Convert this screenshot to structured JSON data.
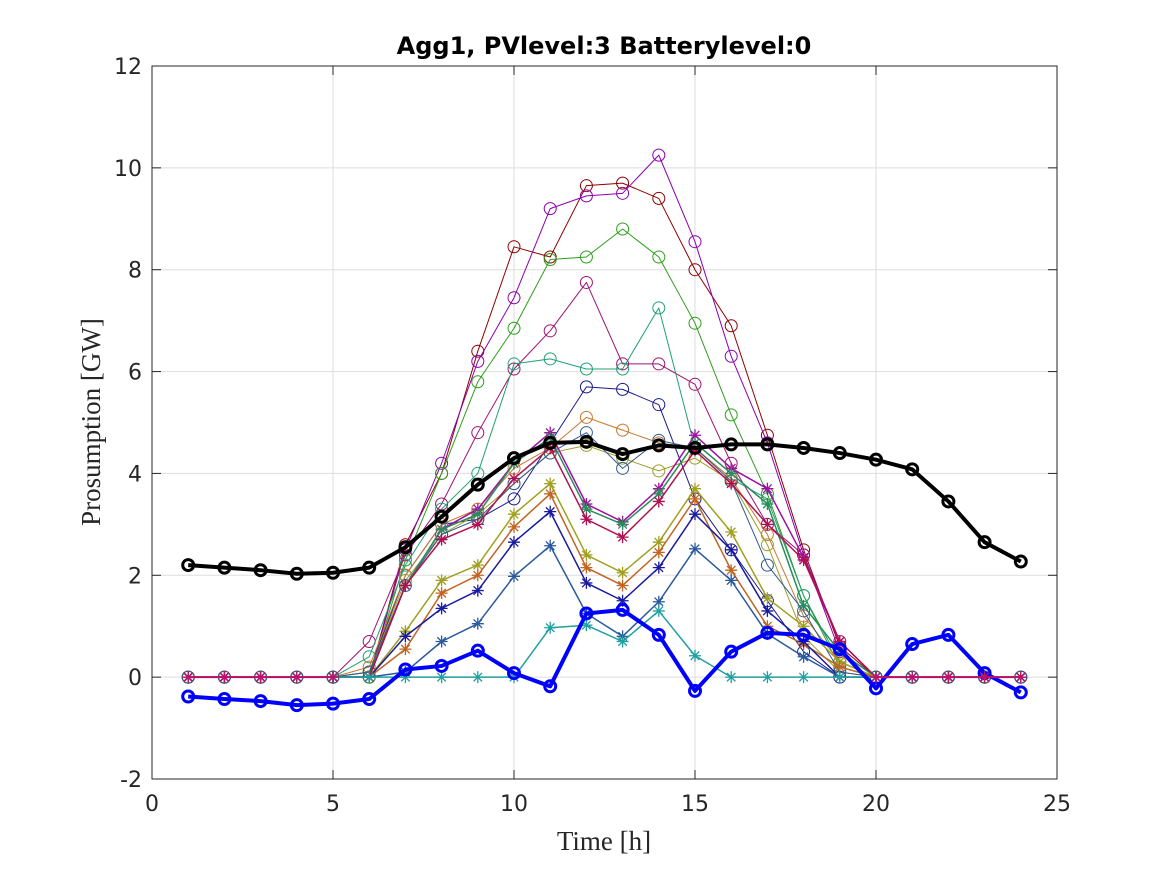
{
  "chart_data": {
    "type": "line",
    "title": "Agg1, PVlevel:3 Batterylevel:0",
    "xlabel": "Time [h]",
    "ylabel": "Prosumption [GW]",
    "xlim": [
      0,
      25
    ],
    "ylim": [
      -2,
      12
    ],
    "xticks": [
      0,
      5,
      10,
      15,
      20,
      25
    ],
    "yticks": [
      -2,
      0,
      2,
      4,
      6,
      8,
      10,
      12
    ],
    "grid": true,
    "x": [
      1,
      2,
      3,
      4,
      5,
      6,
      7,
      8,
      9,
      10,
      11,
      12,
      13,
      14,
      15,
      16,
      17,
      18,
      19,
      20,
      21,
      22,
      23,
      24
    ],
    "series": [
      {
        "color": "#8B0000",
        "marker": "o",
        "width": 1,
        "values": [
          0,
          0,
          0,
          0,
          0,
          0,
          2.6,
          4.0,
          6.4,
          8.45,
          8.25,
          9.65,
          9.7,
          9.4,
          8.0,
          6.9,
          4.75,
          2.5,
          0.6,
          0,
          0,
          0,
          0,
          0
        ]
      },
      {
        "color": "#8B00B0",
        "marker": "o",
        "width": 1,
        "values": [
          0,
          0,
          0,
          0,
          0,
          0,
          2.5,
          4.2,
          6.2,
          7.45,
          9.2,
          9.45,
          9.5,
          10.25,
          8.55,
          6.3,
          4.6,
          2.4,
          0.5,
          0,
          0,
          0,
          0,
          0
        ]
      },
      {
        "color": "#2E9E1E",
        "marker": "o",
        "width": 1,
        "values": [
          0,
          0,
          0,
          0,
          0,
          0,
          2.3,
          4.0,
          5.8,
          6.85,
          8.2,
          8.25,
          8.8,
          8.25,
          6.95,
          5.15,
          3.6,
          1.6,
          0.3,
          0,
          0,
          0,
          0,
          0
        ]
      },
      {
        "color": "#A01070",
        "marker": "o",
        "width": 1,
        "values": [
          0,
          0,
          0,
          0,
          0,
          0.7,
          2.4,
          3.4,
          4.8,
          6.05,
          6.8,
          7.75,
          6.15,
          6.15,
          5.75,
          4.2,
          3.0,
          2.4,
          0.7,
          0,
          0,
          0,
          0,
          0
        ]
      },
      {
        "color": "#20A070",
        "marker": "o",
        "width": 1,
        "values": [
          0,
          0,
          0,
          0,
          0,
          0.4,
          2.2,
          3.3,
          4.0,
          6.15,
          6.25,
          6.05,
          6.05,
          7.25,
          4.5,
          3.9,
          3.5,
          1.6,
          0.2,
          0,
          0,
          0,
          0,
          0
        ]
      },
      {
        "color": "#1A1A8C",
        "marker": "o",
        "width": 1,
        "values": [
          0,
          0,
          0,
          0,
          0,
          0.1,
          2.0,
          3.0,
          3.1,
          3.5,
          4.6,
          5.7,
          5.65,
          5.35,
          3.5,
          2.5,
          1.5,
          0.5,
          0,
          0,
          0,
          0,
          0,
          0
        ]
      },
      {
        "color": "#C87830",
        "marker": "o",
        "width": 1,
        "values": [
          0,
          0,
          0,
          0,
          0,
          0.2,
          2.0,
          3.0,
          3.3,
          4.1,
          4.5,
          5.1,
          4.85,
          4.6,
          4.5,
          3.9,
          2.8,
          1.2,
          0.3,
          0,
          0,
          0,
          0,
          0
        ]
      },
      {
        "color": "#9E9E28",
        "marker": "o",
        "width": 1,
        "values": [
          0,
          0,
          0,
          0,
          0,
          0.1,
          1.9,
          2.8,
          3.2,
          3.8,
          4.4,
          4.55,
          4.3,
          4.05,
          4.3,
          3.85,
          2.6,
          0.8,
          0.1,
          0,
          0,
          0,
          0,
          0
        ]
      },
      {
        "color": "#2E5A8C",
        "marker": "o",
        "width": 1,
        "values": [
          0,
          0,
          0,
          0,
          0,
          0.1,
          1.8,
          2.8,
          3.1,
          3.8,
          4.4,
          4.8,
          4.1,
          4.65,
          4.5,
          3.85,
          2.2,
          1.3,
          0.1,
          0,
          0,
          0,
          0,
          0
        ]
      },
      {
        "color": "#A010A0",
        "marker": "*",
        "width": 1.5,
        "values": [
          0,
          0,
          0,
          0,
          0,
          0,
          1.8,
          2.9,
          3.3,
          4.2,
          4.8,
          3.4,
          3.05,
          3.7,
          4.75,
          4.1,
          3.7,
          2.35,
          0.7,
          0,
          0,
          0,
          0,
          0
        ]
      },
      {
        "color": "#2A8C5A",
        "marker": "*",
        "width": 1.5,
        "values": [
          0,
          0,
          0,
          0,
          0,
          0,
          1.8,
          2.9,
          3.2,
          4.2,
          4.7,
          3.3,
          3.0,
          3.6,
          4.6,
          4.0,
          3.4,
          1.4,
          0.5,
          0,
          0,
          0,
          0,
          0
        ]
      },
      {
        "color": "#B01050",
        "marker": "*",
        "width": 1.5,
        "values": [
          0,
          0,
          0,
          0,
          0,
          0,
          1.8,
          2.7,
          3.0,
          3.9,
          4.5,
          3.1,
          2.75,
          3.45,
          4.45,
          3.8,
          3.0,
          2.3,
          0.7,
          0,
          0,
          0,
          0,
          0
        ]
      },
      {
        "color": "#A0A020",
        "marker": "*",
        "width": 1.5,
        "values": [
          0,
          0,
          0,
          0,
          0,
          0,
          0.9,
          1.9,
          2.2,
          3.2,
          3.8,
          2.4,
          2.05,
          2.65,
          3.7,
          2.85,
          1.55,
          1.0,
          0.3,
          0,
          0,
          0,
          0,
          0
        ]
      },
      {
        "color": "#C06420",
        "marker": "*",
        "width": 1.5,
        "values": [
          0,
          0,
          0,
          0,
          0,
          0,
          0.55,
          1.65,
          2.0,
          2.95,
          3.6,
          2.15,
          1.8,
          2.45,
          3.5,
          2.1,
          1.0,
          0.65,
          0.2,
          0,
          0,
          0,
          0,
          0
        ]
      },
      {
        "color": "#1A1AA0",
        "marker": "*",
        "width": 1.5,
        "values": [
          0,
          0,
          0,
          0,
          0,
          0,
          0.8,
          1.35,
          1.7,
          2.65,
          3.25,
          1.85,
          1.5,
          2.15,
          3.2,
          2.5,
          1.3,
          0.7,
          0,
          0,
          0,
          0,
          0,
          0
        ]
      },
      {
        "color": "#2A5A9E",
        "marker": "*",
        "width": 1.5,
        "values": [
          0,
          0,
          0,
          0,
          0,
          0,
          0.1,
          0.7,
          1.05,
          1.98,
          2.58,
          1.25,
          0.8,
          1.48,
          2.52,
          1.9,
          0.85,
          0.4,
          0,
          0,
          0,
          0,
          0,
          0
        ]
      },
      {
        "color": "#20A0A0",
        "marker": "*",
        "width": 1.5,
        "values": [
          0,
          0,
          0,
          0,
          0,
          0,
          0,
          0,
          0,
          0,
          0.97,
          1.02,
          0.7,
          1.3,
          0.42,
          0,
          0,
          0,
          0,
          0,
          0,
          0,
          0,
          0
        ]
      },
      {
        "color": "#000000",
        "marker": "o",
        "width": 4,
        "values": [
          2.2,
          2.15,
          2.1,
          2.03,
          2.05,
          2.15,
          2.55,
          3.15,
          3.78,
          4.3,
          4.6,
          4.62,
          4.38,
          4.55,
          4.5,
          4.57,
          4.57,
          4.5,
          4.4,
          4.27,
          4.08,
          3.45,
          2.65,
          2.27
        ]
      },
      {
        "color": "#0000FF",
        "marker": "o",
        "width": 4,
        "values": [
          -0.38,
          -0.43,
          -0.47,
          -0.55,
          -0.52,
          -0.43,
          0.15,
          0.22,
          0.52,
          0.08,
          -0.18,
          1.25,
          1.32,
          0.83,
          -0.27,
          0.5,
          0.87,
          0.83,
          0.55,
          -0.22,
          0.65,
          0.83,
          0.08,
          -0.3
        ]
      },
      {
        "color": "#C0106A",
        "marker": "*",
        "width": 2,
        "values": [
          0,
          0,
          0,
          0,
          0,
          null,
          null,
          null,
          null,
          null,
          null,
          null,
          null,
          null,
          null,
          null,
          null,
          null,
          null,
          0,
          0,
          0,
          0,
          0
        ]
      }
    ]
  }
}
